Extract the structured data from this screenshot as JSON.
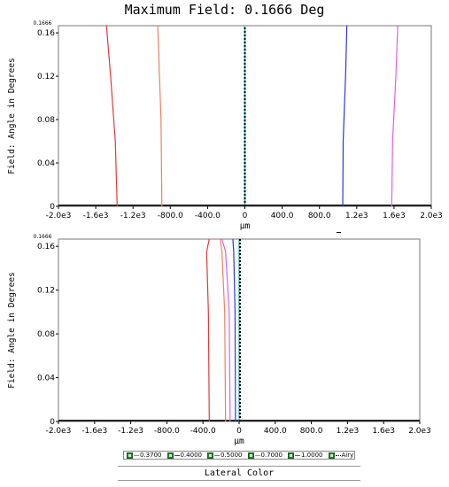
{
  "header": {
    "title": "Maximum Field: 0.1666 Deg"
  },
  "footer": {
    "label": "Lateral Color"
  },
  "colors": {
    "0.3700": "#e060e8",
    "0.4000": "#3333dd",
    "0.5000": "#20a8a8",
    "0.7000": "#f08060",
    "1.0000": "#e03a3a",
    "Airy": "#000000"
  },
  "legend": [
    {
      "label": "0.3700",
      "color": "#e060e8",
      "style": "solid"
    },
    {
      "label": "0.4000",
      "color": "#3333dd",
      "style": "solid"
    },
    {
      "label": "0.5000",
      "color": "#20a8a8",
      "style": "solid"
    },
    {
      "label": "0.7000",
      "color": "#f08060",
      "style": "solid"
    },
    {
      "label": "1.0000",
      "color": "#e03a3a",
      "style": "solid"
    },
    {
      "label": "Airy",
      "color": "#000000",
      "style": "dotted"
    }
  ],
  "chart_data": [
    {
      "type": "line",
      "xlabel": "µm",
      "ylabel": "Field: Angle in Degrees",
      "xlim": [
        -2000,
        2000
      ],
      "ylim": [
        0,
        0.1666
      ],
      "xticks": [
        "-2.0e3",
        "-1.6e3",
        "-1.2e3",
        "-800.0",
        "-400.0",
        "0",
        "400.0",
        "800.0",
        "1.2e3",
        "1.6e3",
        "2.0e3"
      ],
      "yticks": [
        "0",
        "0.04",
        "0.08",
        "0.12",
        "0.16"
      ],
      "ymax_label": "0.1666",
      "series": [
        {
          "name": "1.0000",
          "points": [
            [
              -1370,
              0
            ],
            [
              -1390,
              0.06
            ],
            [
              -1440,
              0.12
            ],
            [
              -1485,
              0.1666
            ]
          ]
        },
        {
          "name": "0.7000",
          "points": [
            [
              -890,
              0
            ],
            [
              -900,
              0.08
            ],
            [
              -935,
              0.1666
            ]
          ]
        },
        {
          "name": "0.5000",
          "points": [
            [
              0,
              0
            ],
            [
              0,
              0.1666
            ]
          ]
        },
        {
          "name": "0.4000",
          "points": [
            [
              1050,
              0
            ],
            [
              1055,
              0.06
            ],
            [
              1080,
              0.12
            ],
            [
              1095,
              0.1666
            ]
          ]
        },
        {
          "name": "0.3700",
          "points": [
            [
              1575,
              0
            ],
            [
              1585,
              0.06
            ],
            [
              1620,
              0.12
            ],
            [
              1640,
              0.1666
            ]
          ]
        },
        {
          "name": "Airy",
          "points": [
            [
              0,
              0
            ],
            [
              0,
              0.1666
            ]
          ]
        }
      ]
    },
    {
      "type": "line",
      "xlabel": "µm",
      "ylabel": "Field: Angle in Degrees",
      "xlim": [
        -2000,
        2000
      ],
      "ylim": [
        0,
        0.1666
      ],
      "xticks": [
        "-2.0e3",
        "-1.6e3",
        "-1.2e3",
        "-800.0",
        "-400.0",
        "0",
        "400.0",
        "800.0",
        "1.2e3",
        "1.6e3",
        "2.0e3"
      ],
      "yticks": [
        "0",
        "0.04",
        "0.08",
        "0.12",
        "0.16"
      ],
      "ymax_label": "0.1666",
      "series": [
        {
          "name": "1.0000",
          "points": [
            [
              -330,
              0
            ],
            [
              -340,
              0.1
            ],
            [
              -360,
              0.155
            ],
            [
              -330,
              0.1666
            ]
          ]
        },
        {
          "name": "0.7000",
          "points": [
            [
              -150,
              0
            ],
            [
              -160,
              0.1
            ],
            [
              -190,
              0.155
            ],
            [
              -210,
              0.1666
            ]
          ]
        },
        {
          "name": "0.3700",
          "points": [
            [
              -100,
              0
            ],
            [
              -110,
              0.1
            ],
            [
              -150,
              0.155
            ],
            [
              -190,
              0.1666
            ]
          ]
        },
        {
          "name": "0.4000",
          "points": [
            [
              -40,
              0
            ],
            [
              -45,
              0.1
            ],
            [
              -60,
              0.155
            ],
            [
              -70,
              0.1666
            ]
          ]
        },
        {
          "name": "0.5000",
          "points": [
            [
              0,
              0
            ],
            [
              0,
              0.1666
            ]
          ]
        },
        {
          "name": "Airy",
          "points": [
            [
              10,
              0
            ],
            [
              10,
              0.1666
            ]
          ]
        }
      ]
    }
  ]
}
